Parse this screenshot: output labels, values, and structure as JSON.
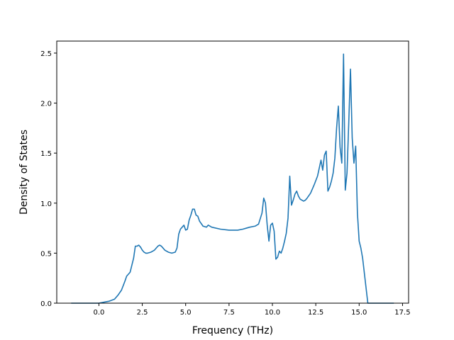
{
  "chart_data": {
    "type": "line",
    "title": "",
    "xlabel": "Frequency (THz)",
    "ylabel": "Density of States",
    "xlim": [
      -2.43,
      17.85
    ],
    "ylim": [
      0.0,
      2.62
    ],
    "xticks": [
      0.0,
      2.5,
      5.0,
      7.5,
      10.0,
      12.5,
      15.0,
      17.5
    ],
    "xtick_labels": [
      "0.0",
      "2.5",
      "5.0",
      "7.5",
      "10.0",
      "12.5",
      "15.0",
      "17.5"
    ],
    "yticks": [
      0.0,
      0.5,
      1.0,
      1.5,
      2.0,
      2.5
    ],
    "ytick_labels": [
      "0.0",
      "0.5",
      "1.0",
      "1.5",
      "2.0",
      "2.5"
    ],
    "grid": false,
    "series_color": "#1f77b4",
    "x": [
      -1.6,
      -1.0,
      -0.5,
      0.0,
      0.3,
      0.6,
      0.9,
      1.1,
      1.3,
      1.5,
      1.6,
      1.8,
      2.0,
      2.1,
      2.2,
      2.3,
      2.4,
      2.5,
      2.6,
      2.7,
      2.8,
      3.0,
      3.2,
      3.4,
      3.5,
      3.6,
      3.7,
      3.8,
      4.0,
      4.2,
      4.4,
      4.5,
      4.6,
      4.7,
      4.8,
      4.9,
      5.0,
      5.1,
      5.2,
      5.3,
      5.4,
      5.5,
      5.6,
      5.7,
      5.8,
      6.0,
      6.2,
      6.3,
      6.5,
      7.0,
      7.5,
      8.0,
      8.3,
      8.5,
      8.7,
      9.0,
      9.2,
      9.4,
      9.5,
      9.6,
      9.7,
      9.8,
      9.9,
      10.0,
      10.1,
      10.2,
      10.3,
      10.4,
      10.5,
      10.6,
      10.7,
      10.8,
      10.9,
      11.0,
      11.1,
      11.2,
      11.3,
      11.4,
      11.5,
      11.6,
      11.7,
      11.8,
      11.9,
      12.0,
      12.2,
      12.4,
      12.6,
      12.8,
      12.9,
      13.0,
      13.1,
      13.2,
      13.3,
      13.4,
      13.5,
      13.6,
      13.7,
      13.8,
      13.9,
      14.0,
      14.1,
      14.2,
      14.3,
      14.4,
      14.5,
      14.6,
      14.7,
      14.8,
      14.9,
      15.0,
      15.1,
      15.2,
      15.3,
      15.4,
      15.5,
      15.6,
      16.0,
      17.0
    ],
    "y": [
      0.0,
      0.0,
      0.0,
      0.0,
      0.01,
      0.02,
      0.04,
      0.08,
      0.13,
      0.22,
      0.27,
      0.31,
      0.45,
      0.57,
      0.57,
      0.58,
      0.56,
      0.53,
      0.51,
      0.5,
      0.5,
      0.51,
      0.53,
      0.57,
      0.58,
      0.57,
      0.55,
      0.53,
      0.51,
      0.5,
      0.51,
      0.55,
      0.69,
      0.74,
      0.76,
      0.78,
      0.73,
      0.74,
      0.83,
      0.88,
      0.94,
      0.94,
      0.88,
      0.87,
      0.82,
      0.77,
      0.76,
      0.78,
      0.76,
      0.74,
      0.73,
      0.73,
      0.74,
      0.75,
      0.76,
      0.77,
      0.79,
      0.9,
      1.05,
      1.0,
      0.78,
      0.62,
      0.78,
      0.8,
      0.72,
      0.44,
      0.46,
      0.52,
      0.5,
      0.55,
      0.62,
      0.7,
      0.85,
      1.27,
      0.98,
      1.03,
      1.09,
      1.12,
      1.07,
      1.04,
      1.03,
      1.02,
      1.03,
      1.05,
      1.1,
      1.18,
      1.27,
      1.43,
      1.33,
      1.48,
      1.52,
      1.12,
      1.16,
      1.22,
      1.3,
      1.45,
      1.75,
      1.97,
      1.56,
      1.4,
      2.49,
      1.13,
      1.3,
      1.8,
      2.34,
      1.65,
      1.4,
      1.57,
      0.9,
      0.62,
      0.55,
      0.45,
      0.3,
      0.15,
      0.0,
      0.0,
      0.0,
      0.0
    ]
  }
}
